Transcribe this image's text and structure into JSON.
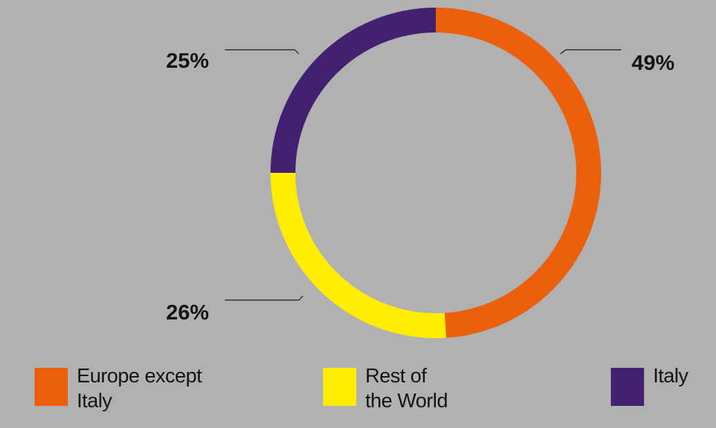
{
  "chart_data": {
    "type": "pie",
    "donut": true,
    "slices": [
      {
        "name": "Europe except Italy",
        "legend_lines": [
          "Europe except",
          "Italy"
        ],
        "value": 49,
        "label": "49%",
        "color": "#ec5f0d"
      },
      {
        "name": "Rest of the World",
        "legend_lines": [
          "Rest of",
          "the World"
        ],
        "value": 26,
        "label": "26%",
        "color": "#ffec00"
      },
      {
        "name": "Italy",
        "legend_lines": [
          "Italy"
        ],
        "value": 25,
        "label": "25%",
        "color": "#432171"
      }
    ],
    "start": "top",
    "direction": "clockwise",
    "legend_position": "bottom",
    "background": "#b1b1b1",
    "text_color": "#141414"
  }
}
